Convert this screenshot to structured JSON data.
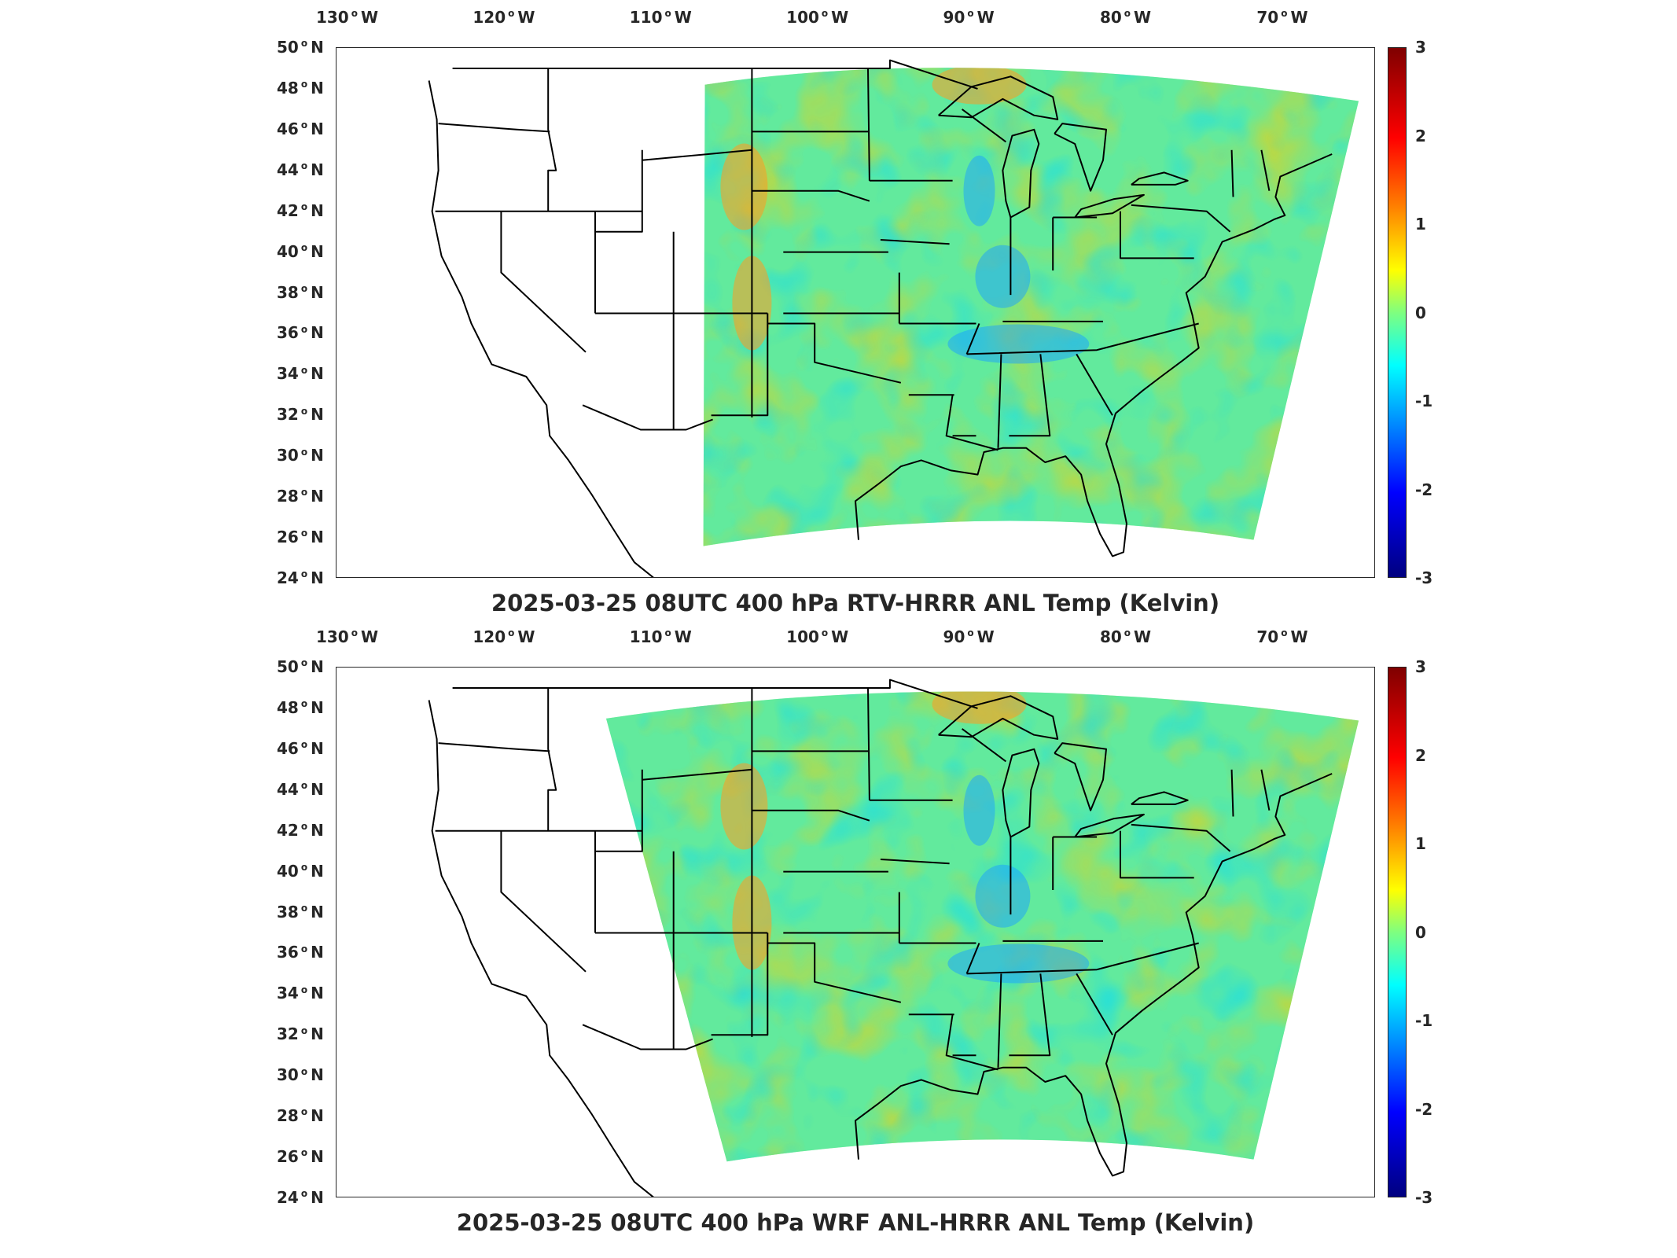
{
  "panels": [
    {
      "title": "2025-03-25 08UTC 400 hPa RTV-HRRR ANL Temp (Kelvin)",
      "field": "RTV-HRRR ANL minus HRRR ANL temperature difference"
    },
    {
      "title": "2025-03-25 08UTC 400 hPa WRF ANL-HRRR ANL Temp (Kelvin)",
      "field": "WRF ANL minus HRRR ANL temperature difference"
    }
  ],
  "map": {
    "projection": "geographic",
    "lon_range": [
      -130,
      -64
    ],
    "lat_range": [
      24,
      50
    ],
    "lon_ticks": [
      {
        "value": "130",
        "hemi": "W"
      },
      {
        "value": "120",
        "hemi": "W"
      },
      {
        "value": "110",
        "hemi": "W"
      },
      {
        "value": "100",
        "hemi": "W"
      },
      {
        "value": "90",
        "hemi": "W"
      },
      {
        "value": "80",
        "hemi": "W"
      },
      {
        "value": "70",
        "hemi": "W"
      }
    ],
    "lat_ticks": [
      {
        "value": "50",
        "hemi": "N"
      },
      {
        "value": "48",
        "hemi": "N"
      },
      {
        "value": "46",
        "hemi": "N"
      },
      {
        "value": "44",
        "hemi": "N"
      },
      {
        "value": "42",
        "hemi": "N"
      },
      {
        "value": "40",
        "hemi": "N"
      },
      {
        "value": "38",
        "hemi": "N"
      },
      {
        "value": "36",
        "hemi": "N"
      },
      {
        "value": "34",
        "hemi": "N"
      },
      {
        "value": "32",
        "hemi": "N"
      },
      {
        "value": "30",
        "hemi": "N"
      },
      {
        "value": "28",
        "hemi": "N"
      },
      {
        "value": "26",
        "hemi": "N"
      },
      {
        "value": "24",
        "hemi": "N"
      }
    ],
    "overlay": "US state boundaries and coastlines"
  },
  "colorbar": {
    "colormap": "jet",
    "min": -3,
    "max": 3,
    "ticks": [
      "3",
      "2",
      "1",
      "0",
      "-1",
      "-2",
      "-3"
    ]
  },
  "colors": {
    "axis": "#262626",
    "background": "#ffffff"
  }
}
